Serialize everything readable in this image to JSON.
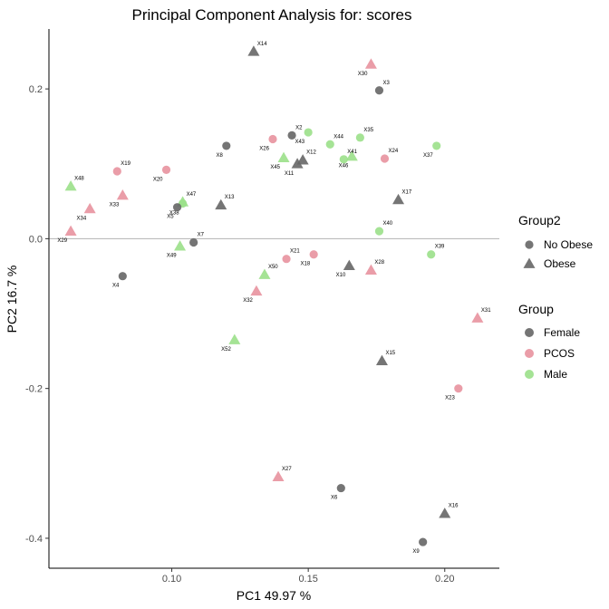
{
  "chart_data": {
    "type": "scatter",
    "title": "Principal Component Analysis for:  scores",
    "xlabel": "PC1 49.97 %",
    "ylabel": "PC2 16.7 %",
    "xlim": [
      0.055,
      0.22
    ],
    "ylim": [
      -0.44,
      0.28
    ],
    "x_ticks": [
      {
        "value": 0.1,
        "label": "0.10"
      },
      {
        "value": 0.15,
        "label": "0.15"
      },
      {
        "value": 0.2,
        "label": "0.20"
      }
    ],
    "y_ticks": [
      {
        "value": 0.2,
        "label": "0.2"
      },
      {
        "value": 0.0,
        "label": "0.0"
      },
      {
        "value": -0.2,
        "label": "-0.2"
      },
      {
        "value": -0.4,
        "label": "-0.4"
      }
    ],
    "zero_line": 0,
    "legend_shape": {
      "title": "Group2",
      "items": [
        {
          "label": "No Obese",
          "shape": "circle"
        },
        {
          "label": "Obese",
          "shape": "triangle"
        }
      ]
    },
    "legend_color": {
      "title": "Group",
      "items": [
        {
          "label": "Female",
          "color": "#666666"
        },
        {
          "label": "PCOS",
          "color": "#E8929E"
        },
        {
          "label": "Male",
          "color": "#9BE08A"
        }
      ]
    },
    "colors": {
      "Female": "#666666",
      "PCOS": "#E8929E",
      "Male": "#9BE08A"
    },
    "points": [
      {
        "label": "X14",
        "x": 0.13,
        "y": 0.25,
        "group": "Female",
        "obese": "Obese"
      },
      {
        "label": "X30",
        "x": 0.173,
        "y": 0.233,
        "group": "PCOS",
        "obese": "Obese"
      },
      {
        "label": "X3",
        "x": 0.176,
        "y": 0.198,
        "group": "Female",
        "obese": "No Obese"
      },
      {
        "label": "X43",
        "x": 0.15,
        "y": 0.142,
        "group": "Male",
        "obese": "No Obese"
      },
      {
        "label": "X35",
        "x": 0.169,
        "y": 0.135,
        "group": "Male",
        "obese": "No Obese"
      },
      {
        "label": "X26",
        "x": 0.137,
        "y": 0.133,
        "group": "PCOS",
        "obese": "No Obese"
      },
      {
        "label": "X2",
        "x": 0.144,
        "y": 0.138,
        "group": "Female",
        "obese": "No Obese"
      },
      {
        "label": "X8",
        "x": 0.12,
        "y": 0.124,
        "group": "Female",
        "obese": "No Obese"
      },
      {
        "label": "X44",
        "x": 0.158,
        "y": 0.126,
        "group": "Male",
        "obese": "No Obese"
      },
      {
        "label": "X37",
        "x": 0.197,
        "y": 0.124,
        "group": "Male",
        "obese": "No Obese"
      },
      {
        "label": "X24",
        "x": 0.178,
        "y": 0.107,
        "group": "PCOS",
        "obese": "No Obese"
      },
      {
        "label": "X46",
        "x": 0.166,
        "y": 0.11,
        "group": "Male",
        "obese": "Obese"
      },
      {
        "label": "X41",
        "x": 0.163,
        "y": 0.106,
        "group": "Male",
        "obese": "No Obese"
      },
      {
        "label": "X45",
        "x": 0.141,
        "y": 0.108,
        "group": "Male",
        "obese": "Obese"
      },
      {
        "label": "X12",
        "x": 0.148,
        "y": 0.105,
        "group": "Female",
        "obese": "Obese"
      },
      {
        "label": "X11",
        "x": 0.146,
        "y": 0.1,
        "group": "Female",
        "obese": "Obese"
      },
      {
        "label": "X19",
        "x": 0.08,
        "y": 0.09,
        "group": "PCOS",
        "obese": "No Obese"
      },
      {
        "label": "X20",
        "x": 0.098,
        "y": 0.092,
        "group": "PCOS",
        "obese": "No Obese"
      },
      {
        "label": "X48",
        "x": 0.063,
        "y": 0.07,
        "group": "Male",
        "obese": "Obese"
      },
      {
        "label": "X33",
        "x": 0.082,
        "y": 0.058,
        "group": "PCOS",
        "obese": "Obese"
      },
      {
        "label": "X17",
        "x": 0.183,
        "y": 0.052,
        "group": "Female",
        "obese": "Obese"
      },
      {
        "label": "X38",
        "x": 0.104,
        "y": 0.047,
        "group": "Male",
        "obese": "No Obese"
      },
      {
        "label": "X47",
        "x": 0.104,
        "y": 0.049,
        "group": "Male",
        "obese": "Obese"
      },
      {
        "label": "X5",
        "x": 0.102,
        "y": 0.042,
        "group": "Female",
        "obese": "No Obese"
      },
      {
        "label": "X13",
        "x": 0.118,
        "y": 0.045,
        "group": "Female",
        "obese": "Obese"
      },
      {
        "label": "X34",
        "x": 0.07,
        "y": 0.04,
        "group": "PCOS",
        "obese": "Obese"
      },
      {
        "label": "X40",
        "x": 0.176,
        "y": 0.01,
        "group": "Male",
        "obese": "No Obese"
      },
      {
        "label": "X29",
        "x": 0.063,
        "y": 0.01,
        "group": "PCOS",
        "obese": "Obese"
      },
      {
        "label": "X7",
        "x": 0.108,
        "y": -0.005,
        "group": "Female",
        "obese": "No Obese"
      },
      {
        "label": "X49",
        "x": 0.103,
        "y": -0.01,
        "group": "Male",
        "obese": "Obese"
      },
      {
        "label": "X39",
        "x": 0.195,
        "y": -0.021,
        "group": "Male",
        "obese": "No Obese"
      },
      {
        "label": "X18",
        "x": 0.152,
        "y": -0.021,
        "group": "PCOS",
        "obese": "No Obese"
      },
      {
        "label": "X21",
        "x": 0.142,
        "y": -0.027,
        "group": "PCOS",
        "obese": "No Obese"
      },
      {
        "label": "X10",
        "x": 0.165,
        "y": -0.036,
        "group": "Female",
        "obese": "Obese"
      },
      {
        "label": "X28",
        "x": 0.173,
        "y": -0.042,
        "group": "PCOS",
        "obese": "Obese"
      },
      {
        "label": "X4",
        "x": 0.082,
        "y": -0.05,
        "group": "Female",
        "obese": "No Obese"
      },
      {
        "label": "X50",
        "x": 0.134,
        "y": -0.048,
        "group": "Male",
        "obese": "Obese"
      },
      {
        "label": "X32",
        "x": 0.131,
        "y": -0.07,
        "group": "PCOS",
        "obese": "Obese"
      },
      {
        "label": "X31",
        "x": 0.212,
        "y": -0.106,
        "group": "PCOS",
        "obese": "Obese"
      },
      {
        "label": "X52",
        "x": 0.123,
        "y": -0.135,
        "group": "Male",
        "obese": "Obese"
      },
      {
        "label": "X15",
        "x": 0.177,
        "y": -0.163,
        "group": "Female",
        "obese": "Obese"
      },
      {
        "label": "X23",
        "x": 0.205,
        "y": -0.2,
        "group": "PCOS",
        "obese": "No Obese"
      },
      {
        "label": "X27",
        "x": 0.139,
        "y": -0.318,
        "group": "PCOS",
        "obese": "Obese"
      },
      {
        "label": "X6",
        "x": 0.162,
        "y": -0.333,
        "group": "Female",
        "obese": "No Obese"
      },
      {
        "label": "X16",
        "x": 0.2,
        "y": -0.367,
        "group": "Female",
        "obese": "Obese"
      },
      {
        "label": "X9",
        "x": 0.192,
        "y": -0.405,
        "group": "Female",
        "obese": "No Obese"
      }
    ]
  }
}
